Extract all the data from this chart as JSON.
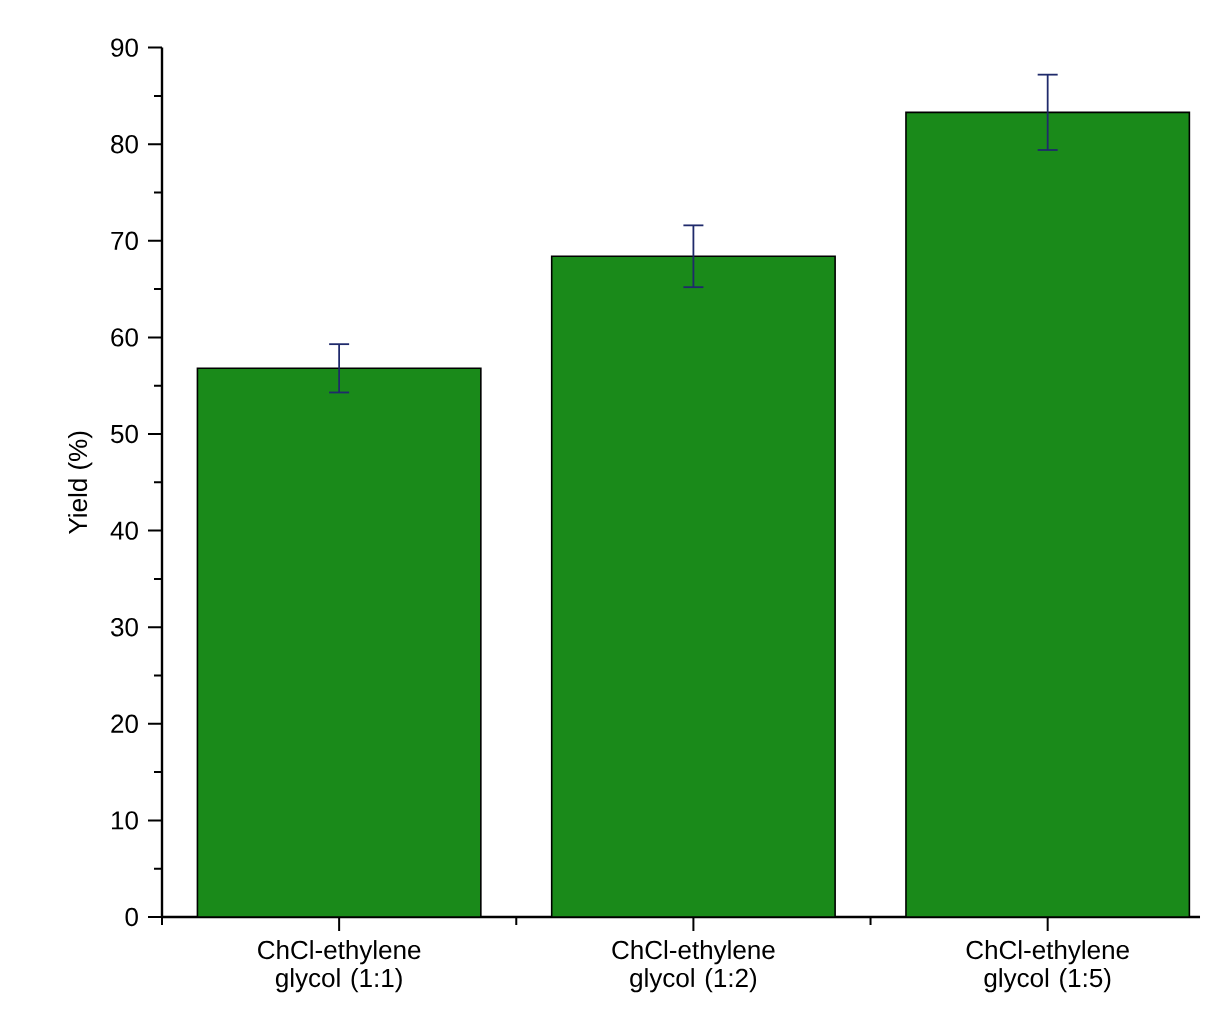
{
  "chart_data": {
    "type": "bar",
    "ylabel": "Yield (%)",
    "categories": [
      "ChCl-ethylene glycol (1:1)",
      "ChCl-ethylene glycol (1:2)",
      "ChCl-ethylene glycol (1:5)"
    ],
    "values": [
      56.8,
      68.4,
      83.3
    ],
    "errors": [
      2.5,
      3.2,
      3.9
    ],
    "color": "#1a8a1a",
    "ylim": [
      0,
      90
    ],
    "yticks": [
      0,
      10,
      20,
      30,
      40,
      50,
      60,
      70,
      80,
      90
    ]
  }
}
